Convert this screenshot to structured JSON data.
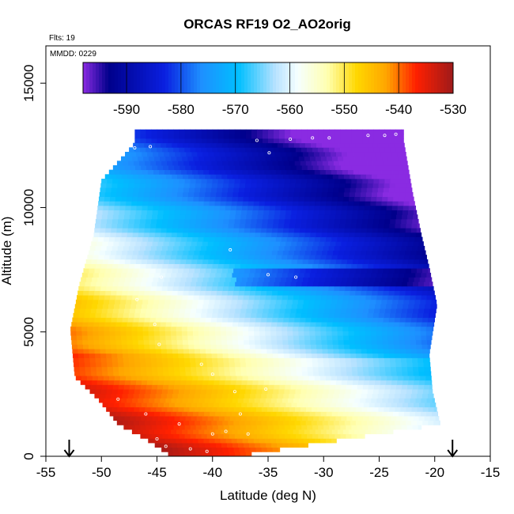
{
  "chart_data": {
    "type": "heatmap",
    "title": "ORCAS RF19 O2_AO2orig",
    "xlabel": "Latitude (deg N)",
    "ylabel": "Altitude (m)",
    "xlim": [
      -55,
      -15
    ],
    "ylim": [
      0,
      16500
    ],
    "x_ticks": [
      -55,
      -50,
      -45,
      -40,
      -35,
      -30,
      -25,
      -20,
      -15
    ],
    "y_ticks": [
      0,
      5000,
      10000,
      15000
    ],
    "annotations": [
      "Flts: 19",
      "MMDD: 0229"
    ],
    "colorbar": {
      "range": [
        -598,
        -530
      ],
      "ticks": [
        -590,
        -580,
        -570,
        -560,
        -550,
        -540,
        -530
      ]
    },
    "arrows_at_latitude": [
      -52.9,
      -18.4
    ],
    "colors": {
      "low": "#7a1fd6",
      "high": "#9e1a1a"
    }
  }
}
